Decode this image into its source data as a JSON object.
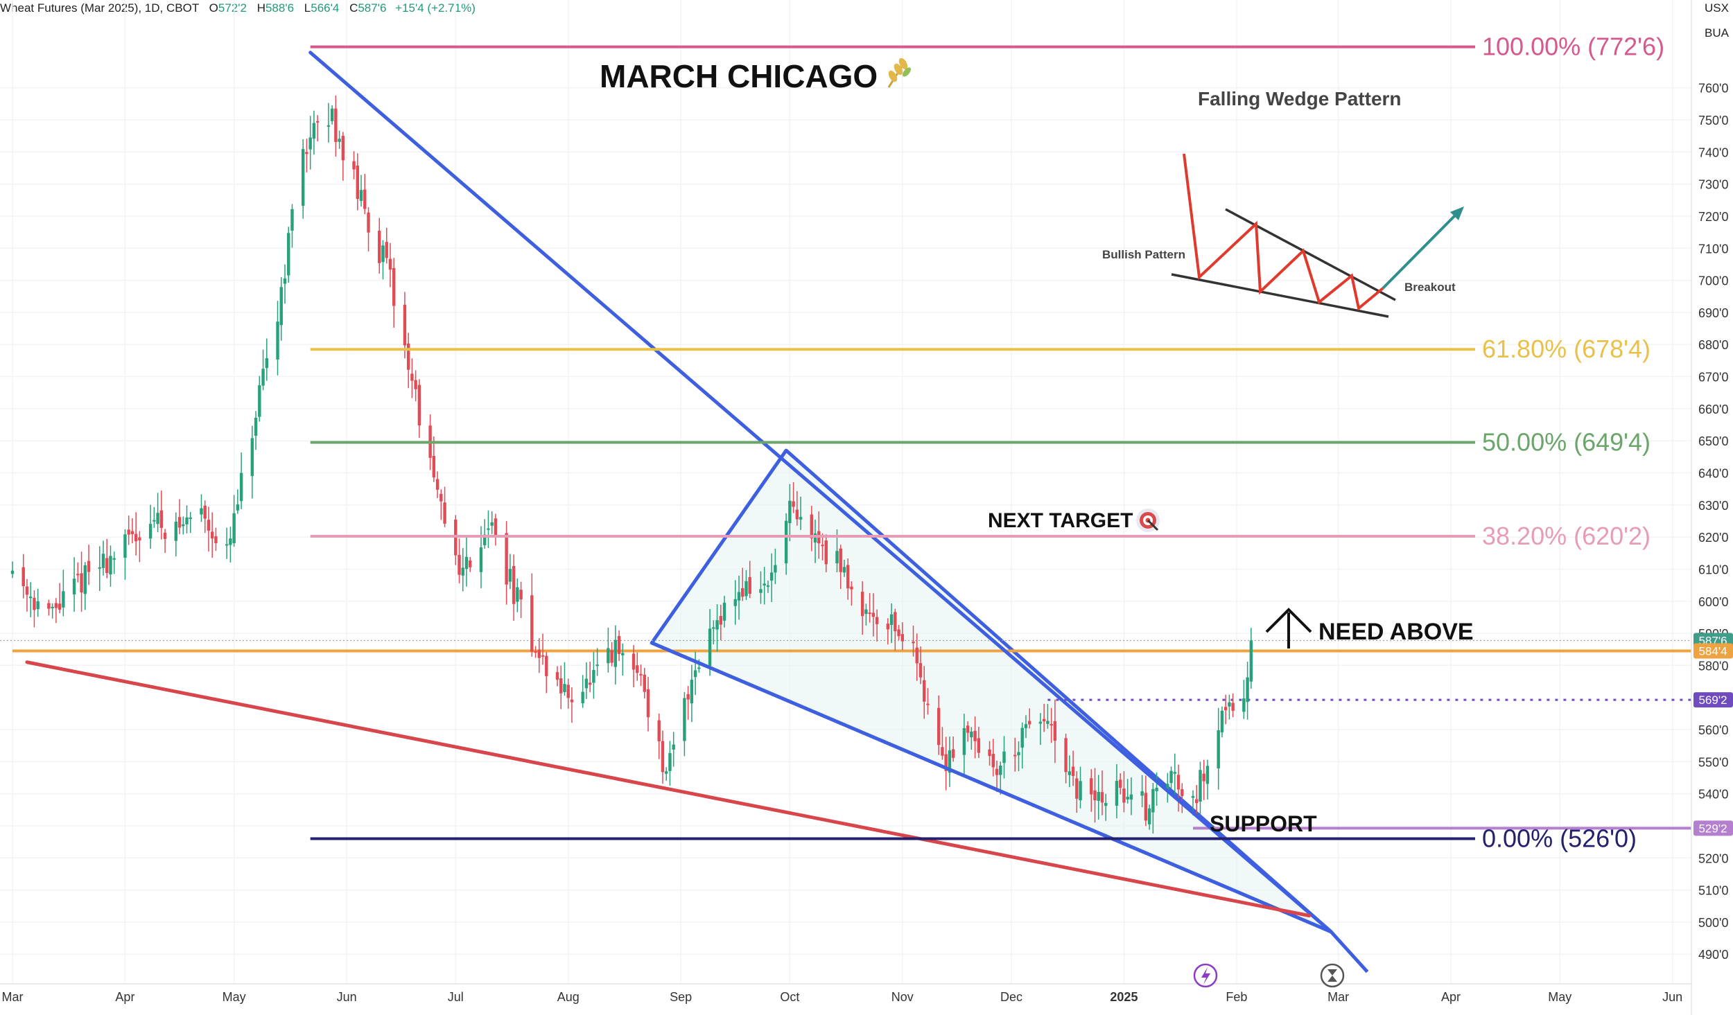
{
  "header": {
    "title": "Wheat Futures (Mar 2025), 1D, CBOT",
    "open_label": "O",
    "open": "572'2",
    "high_label": "H",
    "high": "588'6",
    "low_label": "L",
    "low": "566'4",
    "close_label": "C",
    "close": "587'6",
    "change": "+15'4 (+2.71%)",
    "currency": "USX",
    "unit": "BUA"
  },
  "colors": {
    "up": "#26a17b",
    "down": "#e04b55",
    "wedge": "#3d5fe0",
    "support_line": "#d8454b",
    "fib100": "#d6588c",
    "fib618": "#e9c14a",
    "fib50": "#6aa56a",
    "fib382": "#e79cb6",
    "fib0": "#23216e",
    "price_tag": "#3e9e8a",
    "level_584": "#efa340",
    "level_569": "#6f4bc0",
    "level_529": "#b57fcf"
  },
  "chart_data": {
    "type": "candlestick",
    "title": "MARCH CHICAGO",
    "title_icon": "wheat-icon",
    "x_ticks": [
      "Mar",
      "Apr",
      "May",
      "Jun",
      "Jul",
      "Aug",
      "Sep",
      "Oct",
      "Nov",
      "Dec",
      "2025",
      "Feb",
      "Mar",
      "Apr",
      "May",
      "Jun"
    ],
    "y_ticks": [
      "760'0",
      "750'0",
      "740'0",
      "730'0",
      "720'0",
      "710'0",
      "700'0",
      "690'0",
      "680'0",
      "670'0",
      "660'0",
      "650'0",
      "640'0",
      "630'0",
      "620'0",
      "610'0",
      "600'0",
      "590'0",
      "580'0",
      "560'0",
      "550'0",
      "540'0",
      "530'0",
      "520'0",
      "510'0",
      "500'0",
      "490'0"
    ],
    "y_tick_values": [
      760,
      750,
      740,
      730,
      720,
      710,
      700,
      690,
      680,
      670,
      660,
      650,
      640,
      630,
      620,
      610,
      600,
      590,
      580,
      560,
      550,
      540,
      530,
      520,
      510,
      500,
      490
    ],
    "ylim": [
      484,
      777
    ],
    "fib_levels": [
      {
        "label": "100.00% (772'6)",
        "value": 772.75,
        "start": "2024-05-22",
        "color_key": "fib100"
      },
      {
        "label": "61.80% (678'4)",
        "value": 678.5,
        "start": "2024-05-22",
        "color_key": "fib618"
      },
      {
        "label": "50.00% (649'4)",
        "value": 649.5,
        "start": "2024-05-22",
        "color_key": "fib50"
      },
      {
        "label": "38.20% (620'2)",
        "value": 620.25,
        "start": "2024-05-22",
        "color_key": "fib382"
      },
      {
        "label": "0.00% (526'0)",
        "value": 526.0,
        "start": "2024-05-22",
        "color_key": "fib0"
      }
    ],
    "price_tags": [
      {
        "label": "587'6",
        "value": 587.75,
        "color_key": "price_tag"
      },
      {
        "label": "584'4",
        "value": 584.5,
        "color_key": "level_584"
      },
      {
        "label": "569'2",
        "value": 569.25,
        "color_key": "level_569"
      },
      {
        "label": "529'2",
        "value": 529.25,
        "color_key": "level_529"
      }
    ],
    "horizontal_lines": [
      {
        "value": 584.5,
        "start": "2024-03-01",
        "color_key": "level_584",
        "style": "solid"
      },
      {
        "value": 569.25,
        "start": "2024-12-11",
        "color_key": "level_569",
        "style": "dotted"
      },
      {
        "value": 529.25,
        "start": "2025-01-20",
        "color_key": "level_529",
        "style": "solid"
      }
    ],
    "trendlines": [
      {
        "from": [
          "2024-05-22",
          771.0
        ],
        "to": [
          "2025-02-27",
          497.0
        ],
        "color_key": "wedge"
      },
      {
        "from": [
          "2024-08-24",
          587.0
        ],
        "to": [
          "2025-02-27",
          497.0
        ],
        "color_key": "wedge"
      },
      {
        "from": [
          "2024-03-05",
          581.0
        ],
        "to": [
          "2025-02-21",
          502.0
        ],
        "color_key": "support_line"
      }
    ],
    "triangle": [
      [
        "2024-08-24",
        587.0
      ],
      [
        "2024-09-30",
        647.0
      ],
      [
        "2025-02-27",
        497.0
      ]
    ],
    "arrow_extension": {
      "from": [
        "2025-02-27",
        497.0
      ],
      "to": [
        "2025-03-09",
        484.5
      ]
    },
    "annotations": {
      "next_target": "NEXT TARGET",
      "need_above": "NEED ABOVE",
      "support": "SUPPORT"
    },
    "inset": {
      "title": "Falling Wedge Pattern",
      "bullish_label": "Bullish Pattern",
      "breakout_label": "Breakout"
    },
    "waypoints": [
      [
        "2024-03-01",
        610
      ],
      [
        "2024-03-11",
        595
      ],
      [
        "2024-03-20",
        607
      ],
      [
        "2024-04-01",
        617
      ],
      [
        "2024-04-08",
        626
      ],
      [
        "2024-04-15",
        622
      ],
      [
        "2024-04-22",
        629
      ],
      [
        "2024-04-29",
        614
      ],
      [
        "2024-05-06",
        652
      ],
      [
        "2024-05-13",
        690
      ],
      [
        "2024-05-20",
        742
      ],
      [
        "2024-05-28",
        751
      ],
      [
        "2024-06-05",
        724
      ],
      [
        "2024-06-12",
        704
      ],
      [
        "2024-06-19",
        669
      ],
      [
        "2024-06-26",
        631
      ],
      [
        "2024-07-03",
        609
      ],
      [
        "2024-07-10",
        625
      ],
      [
        "2024-07-17",
        603
      ],
      [
        "2024-07-24",
        582
      ],
      [
        "2024-07-31",
        571
      ],
      [
        "2024-08-07",
        574
      ],
      [
        "2024-08-14",
        584
      ],
      [
        "2024-08-21",
        577
      ],
      [
        "2024-08-28",
        544
      ],
      [
        "2024-09-04",
        577
      ],
      [
        "2024-09-11",
        596
      ],
      [
        "2024-09-18",
        604
      ],
      [
        "2024-09-25",
        604
      ],
      [
        "2024-10-01",
        627
      ],
      [
        "2024-10-08",
        620
      ],
      [
        "2024-10-15",
        610
      ],
      [
        "2024-10-22",
        597
      ],
      [
        "2024-10-29",
        594
      ],
      [
        "2024-11-05",
        582
      ],
      [
        "2024-11-12",
        549
      ],
      [
        "2024-11-19",
        562
      ],
      [
        "2024-11-26",
        547
      ],
      [
        "2024-12-03",
        556
      ],
      [
        "2024-12-10",
        564
      ],
      [
        "2024-12-17",
        543
      ],
      [
        "2024-12-24",
        538
      ],
      [
        "2024-12-31",
        541
      ],
      [
        "2025-01-07",
        536
      ],
      [
        "2025-01-14",
        546
      ],
      [
        "2025-01-21",
        540
      ],
      [
        "2025-01-28",
        566
      ],
      [
        "2025-02-03",
        572
      ],
      [
        "2025-02-05",
        587
      ]
    ]
  }
}
